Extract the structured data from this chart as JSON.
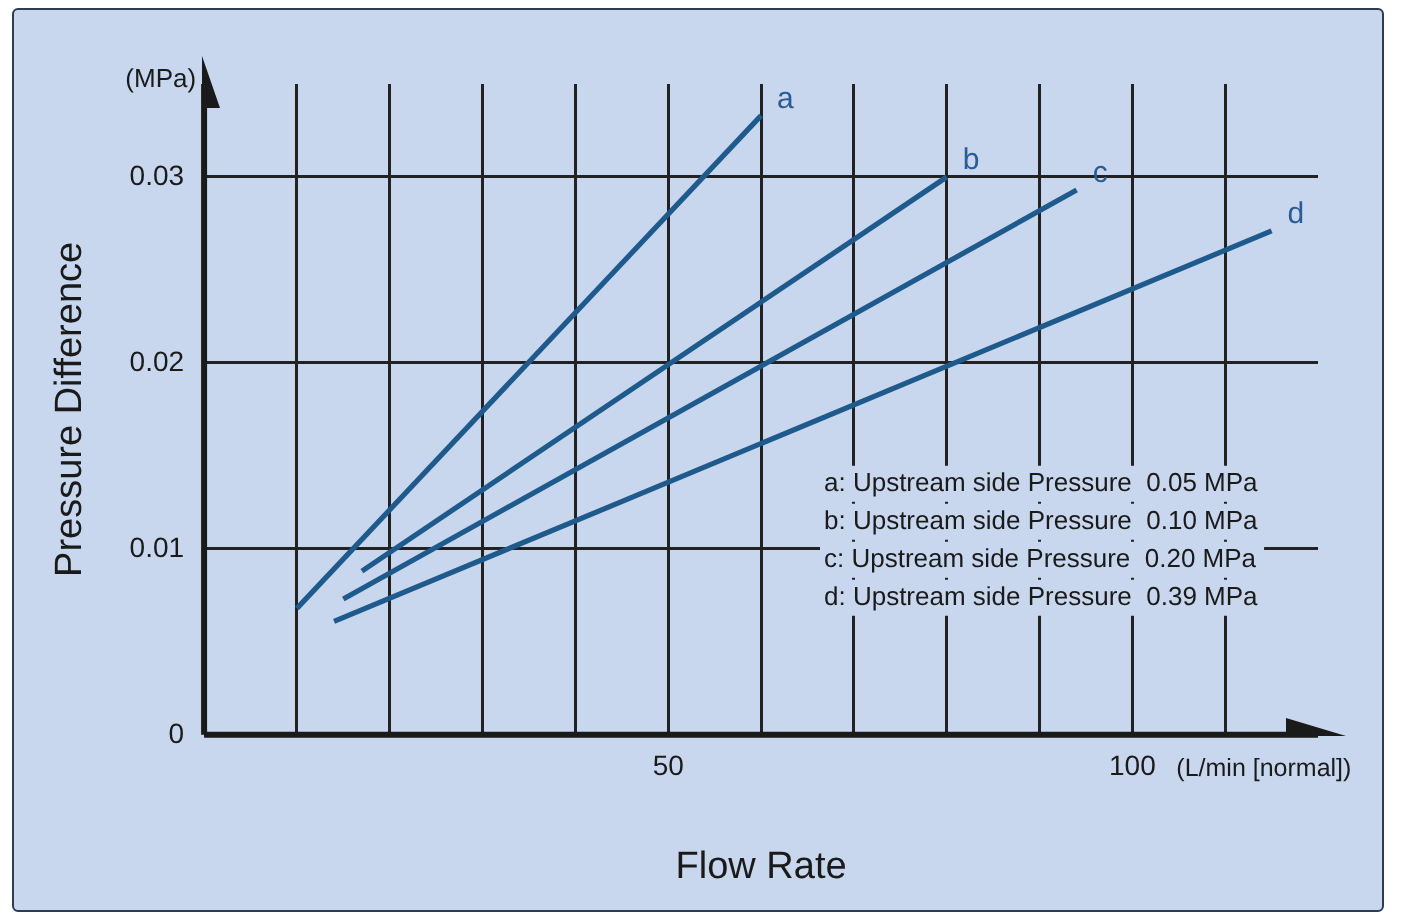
{
  "chart_data": {
    "type": "line",
    "xlabel": "Flow Rate",
    "ylabel": "Pressure Difference",
    "xlim": [
      0,
      120
    ],
    "ylim": [
      0,
      0.035
    ],
    "xticks": [
      {
        "value": 10,
        "label": null
      },
      {
        "value": 20,
        "label": null
      },
      {
        "value": 30,
        "label": null
      },
      {
        "value": 40,
        "label": null
      },
      50,
      {
        "value": 60,
        "label": null
      },
      {
        "value": 70,
        "label": null
      },
      {
        "value": 80,
        "label": null
      },
      {
        "value": 90,
        "label": null
      },
      100,
      {
        "value": 110,
        "label": null
      }
    ],
    "yticks": [
      0,
      0.01,
      0.02,
      0.03
    ],
    "grid": true,
    "marker": "none",
    "line_style": "solid",
    "annotations": [
      "(MPa)",
      "(L/min [normal])",
      "a: Upstream side Pressure  0.05 MPa",
      "b: Upstream side Pressure  0.10 MPa",
      "c: Upstream side Pressure  0.20 MPa",
      "d: Upstream side Pressure  0.39 MPa"
    ],
    "series": [
      {
        "name": "a",
        "color": "#1f5a8c",
        "x": [
          10,
          60
        ],
        "values": [
          0.0068,
          0.0333
        ]
      },
      {
        "name": "b",
        "color": "#1f5a8c",
        "x": [
          17,
          80
        ],
        "values": [
          0.0088,
          0.03
        ]
      },
      {
        "name": "c",
        "color": "#1f5a8c",
        "x": [
          15,
          94
        ],
        "values": [
          0.0073,
          0.0293
        ]
      },
      {
        "name": "d",
        "color": "#1f5a8c",
        "x": [
          14,
          115
        ],
        "values": [
          0.0061,
          0.0271
        ]
      }
    ]
  }
}
